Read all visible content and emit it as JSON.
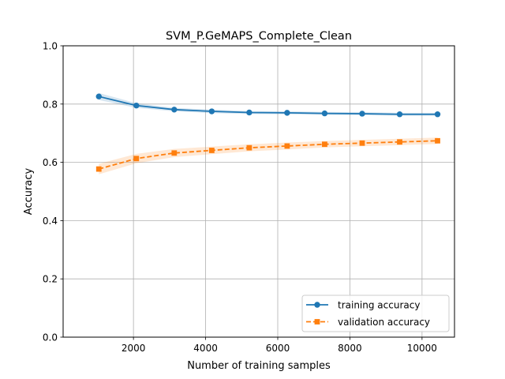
{
  "chart_data": {
    "type": "line",
    "title": "SVM_P.GeMAPS_Complete_Clean",
    "xlabel": "Number of training samples",
    "ylabel": "Accuracy",
    "xlim": [
      50,
      10900
    ],
    "ylim": [
      0.0,
      1.0
    ],
    "xticks": [
      2000,
      4000,
      6000,
      8000,
      10000
    ],
    "yticks": [
      0.0,
      0.2,
      0.4,
      0.6,
      0.8,
      1.0
    ],
    "grid": true,
    "legend_position": "lower right",
    "x": [
      1040,
      2080,
      3130,
      4170,
      5210,
      6260,
      7300,
      8340,
      9380,
      10430
    ],
    "series": [
      {
        "name": "training accuracy",
        "color": "#1f77b4",
        "marker": "circle",
        "linestyle": "solid",
        "values": [
          0.826,
          0.795,
          0.781,
          0.775,
          0.771,
          0.77,
          0.768,
          0.767,
          0.765,
          0.765
        ],
        "band": [
          0.012,
          0.008,
          0.006,
          0.006,
          0.005,
          0.005,
          0.005,
          0.005,
          0.005,
          0.005
        ]
      },
      {
        "name": "validation accuracy",
        "color": "#ff7f0e",
        "marker": "square",
        "linestyle": "dashed",
        "values": [
          0.577,
          0.613,
          0.632,
          0.641,
          0.65,
          0.656,
          0.662,
          0.666,
          0.67,
          0.674
        ],
        "band": [
          0.018,
          0.016,
          0.014,
          0.013,
          0.012,
          0.012,
          0.011,
          0.011,
          0.011,
          0.011
        ]
      }
    ]
  }
}
